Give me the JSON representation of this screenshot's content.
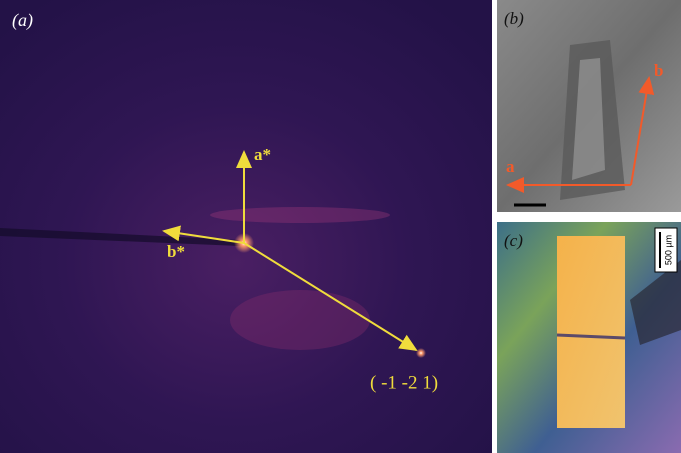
{
  "panels": {
    "a": {
      "label": "(a)",
      "vectors": [
        "a*",
        "b*"
      ],
      "reflection": "( -1 -2 1)"
    },
    "b": {
      "label": "(b)",
      "axes": [
        "b",
        "a"
      ]
    },
    "c": {
      "label": "(c)",
      "scale_bar": "500 µm"
    }
  }
}
